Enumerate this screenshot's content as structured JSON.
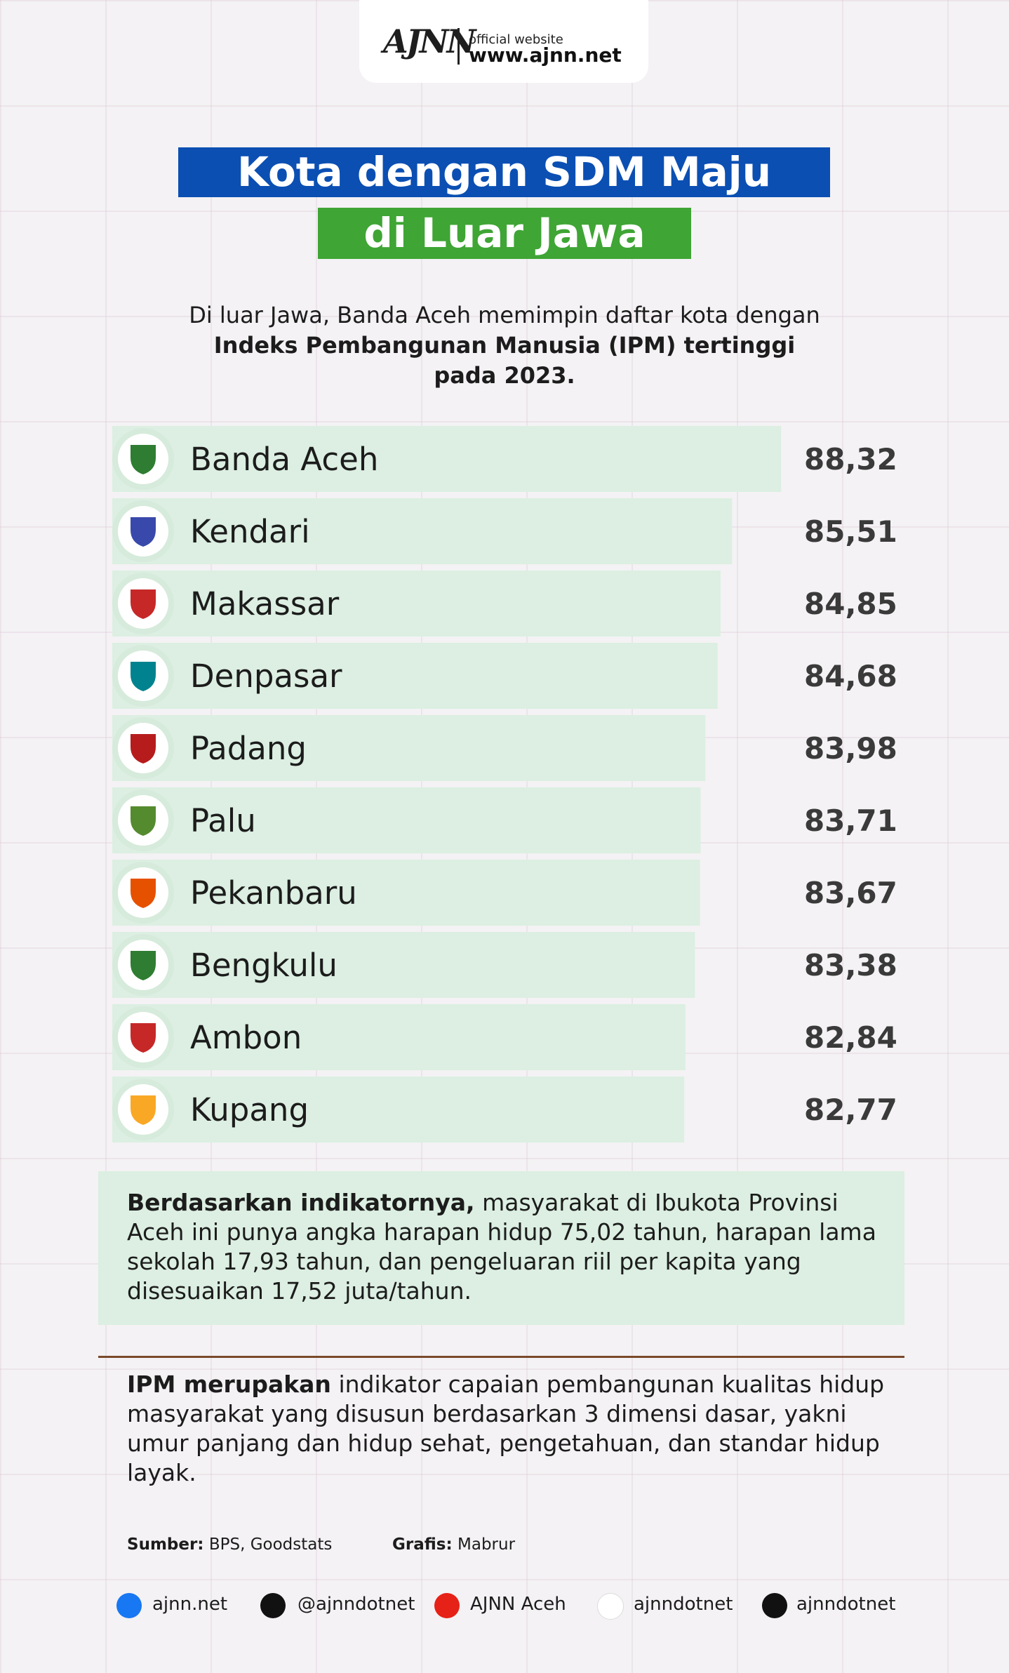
{
  "header": {
    "logo": "AJNN",
    "label": "official website",
    "url": "www.ajnn.net"
  },
  "chart_data": {
    "type": "bar",
    "orientation": "horizontal",
    "title_lines": [
      "Kota dengan SDM Maju",
      "di Luar Jawa"
    ],
    "subtitle": {
      "text": "Di luar Jawa, Banda Aceh memimpin daftar kota dengan",
      "bold": "Indeks Pembangunan Manusia (IPM) tertinggi pada 2023."
    },
    "categories": [
      "Banda Aceh",
      "Kendari",
      "Makassar",
      "Denpasar",
      "Padang",
      "Palu",
      "Pekanbaru",
      "Bengkulu",
      "Ambon",
      "Kupang"
    ],
    "values": [
      88.32,
      85.51,
      84.85,
      84.68,
      83.98,
      83.71,
      83.67,
      83.38,
      82.84,
      82.77
    ],
    "value_labels": [
      "88,32",
      "85,51",
      "84,85",
      "84,68",
      "83,98",
      "83,71",
      "83,67",
      "83,38",
      "82,84",
      "82,77"
    ],
    "color": "#dcefe2",
    "xlim": [
      50,
      90
    ]
  },
  "notes": [
    {
      "bold": "Berdasarkan indikatornya,",
      "text": "masyarakat di Ibukota Provinsi Aceh ini punya angka harapan hidup 75,02 tahun, harapan lama sekolah 17,93 tahun, dan pengeluaran riil per kapita yang disesuaikan 17,52 juta/tahun."
    },
    {
      "bold": "IPM merupakan",
      "text": "indikator capaian pembangunan kualitas hidup masyarakat yang disusun berdasarkan 3 dimensi dasar, yakni umur panjang dan hidup sehat, pengetahuan, dan standar hidup layak."
    }
  ],
  "credits": [
    {
      "label": "Sumber:",
      "text": "BPS, Goodstats"
    },
    {
      "label": "Grafis:",
      "text": "Mabrur"
    }
  ],
  "socials": [
    "ajnn.net",
    "@ajnndotnet",
    "AJNN Aceh",
    "ajnndotnet",
    "ajnndotnet"
  ]
}
